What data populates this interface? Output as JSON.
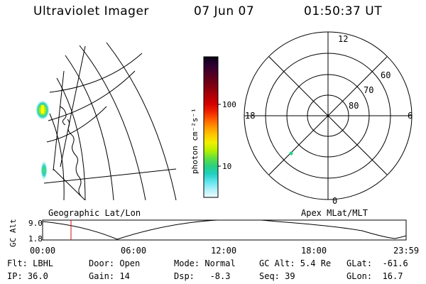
{
  "header": {
    "title": "Ultraviolet Imager",
    "date": "07 Jun 07",
    "time": "01:50:37 UT"
  },
  "map_panel": {
    "caption": "Geographic Lat/Lon"
  },
  "colorbar": {
    "label": "photon cm⁻²s⁻¹",
    "ticks": [
      "100",
      "10"
    ],
    "colors": [
      "#0a0014",
      "#2a0030",
      "#4a0028",
      "#680018",
      "#8a0010",
      "#b00008",
      "#d40000",
      "#ee2000",
      "#ff5a00",
      "#ff9600",
      "#ffc800",
      "#f0f000",
      "#b4f000",
      "#60e040",
      "#28d080",
      "#20d0c0",
      "#60e4ee",
      "#b0f0f8",
      "#f0fcff"
    ]
  },
  "polar_panel": {
    "caption": "Apex MLat/MLT",
    "mlt_labels": [
      "12",
      "18",
      "6",
      "0"
    ],
    "lat_labels": [
      "60",
      "70",
      "80"
    ]
  },
  "altitude_plot": {
    "ylabel": "GC Alt",
    "yticks": [
      "9.0",
      "1.8"
    ],
    "xticks": [
      "00:00",
      "06:00",
      "12:00",
      "18:00",
      "23:59"
    ],
    "cursor_time": "01:50:37"
  },
  "info": {
    "flt": "Flt: LBHL",
    "ip": "IP: 36.0",
    "door": "Door: Open",
    "gain": "Gain: 14",
    "mode": "Mode: Normal",
    "dsp": "Dsp:   -8.3",
    "gcalt": "GC Alt: 5.4 Re",
    "seq": "Seq: 39",
    "glat": "GLat:  -61.6",
    "glon": "GLon:  16.7"
  }
}
